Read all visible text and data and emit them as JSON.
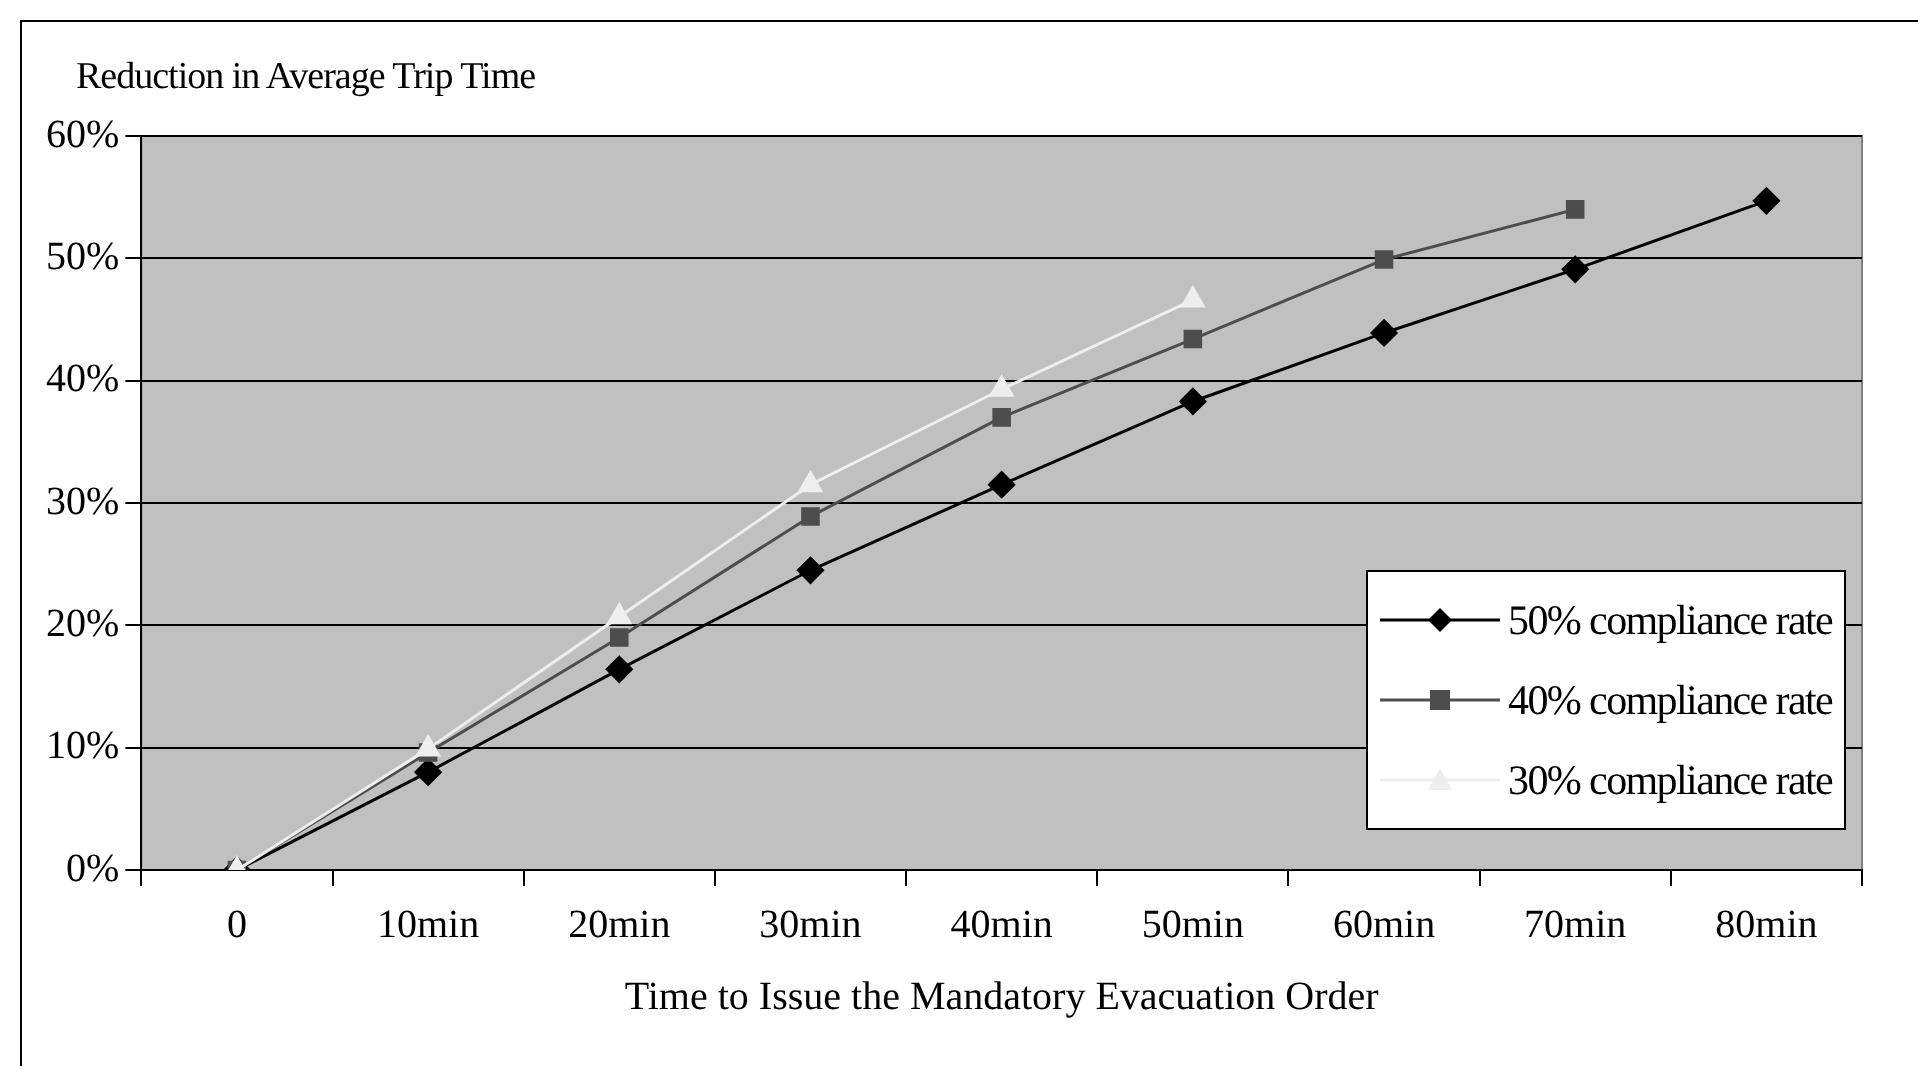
{
  "chart_data": {
    "type": "line",
    "ylabel": "Reduction in Average Trip Time",
    "xlabel": "Time to Issue the Mandatory Evacuation Order",
    "categories": [
      "0",
      "10min",
      "20min",
      "30min",
      "40min",
      "50min",
      "60min",
      "70min",
      "80min"
    ],
    "series": [
      {
        "name": "50% compliance rate",
        "color": "#000000",
        "marker": "diamond",
        "values": [
          0,
          8.0,
          16.4,
          24.5,
          31.5,
          38.3,
          43.9,
          49.1,
          54.7
        ]
      },
      {
        "name": "40% compliance rate",
        "color": "#4d4d4d",
        "marker": "square",
        "values": [
          0,
          9.6,
          19.0,
          28.9,
          37.0,
          43.4,
          49.9,
          54.0,
          null
        ]
      },
      {
        "name": "30% compliance rate",
        "color": "#eeeeee",
        "marker": "triangle",
        "values": [
          0,
          9.9,
          20.7,
          31.5,
          39.3,
          46.6,
          null,
          null,
          null
        ]
      }
    ],
    "ylim": [
      0,
      60
    ],
    "yticks": [
      {
        "value": 0,
        "label": "0%"
      },
      {
        "value": 10,
        "label": "10%"
      },
      {
        "value": 20,
        "label": "20%"
      },
      {
        "value": 30,
        "label": "30%"
      },
      {
        "value": 40,
        "label": "40%"
      },
      {
        "value": 50,
        "label": "50%"
      },
      {
        "value": 60,
        "label": "60%"
      }
    ],
    "grid": "y",
    "legend": "bottom right"
  }
}
